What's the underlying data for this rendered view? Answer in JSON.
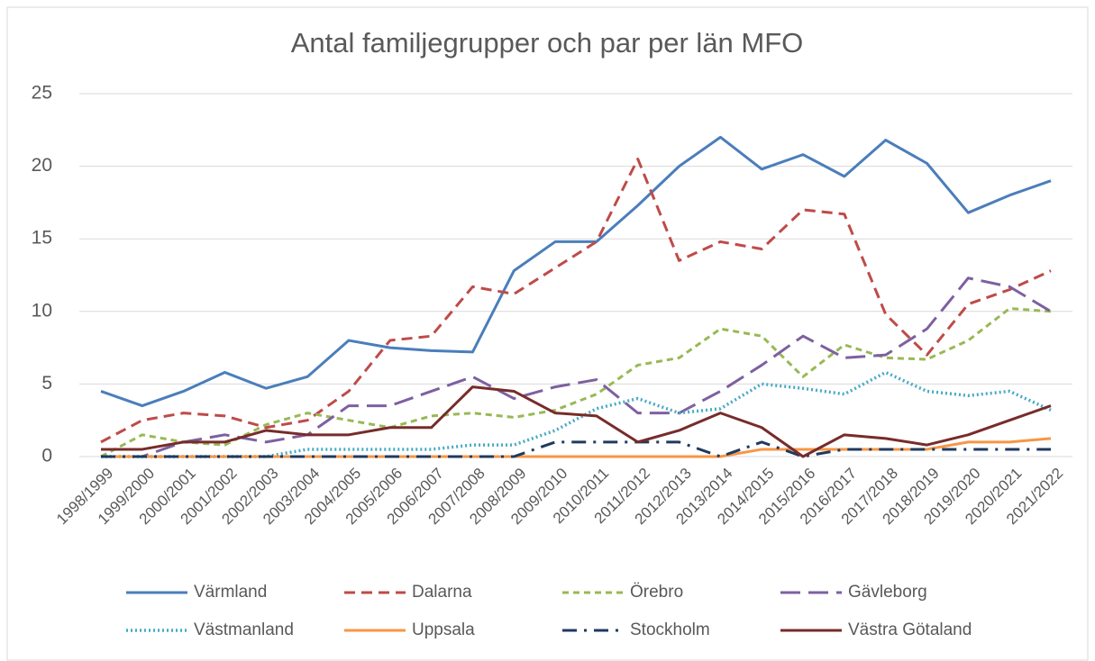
{
  "chart_data": {
    "type": "line",
    "title": "Antal familjegrupper och par per län MFO",
    "categories": [
      "1998/1999",
      "1999/2000",
      "2000/2001",
      "2001/2002",
      "2002/2003",
      "2003/2004",
      "2004/2005",
      "2005/2006",
      "2006/2007",
      "2007/2008",
      "2008/2009",
      "2009/2010",
      "2010/2011",
      "2011/2012",
      "2012/2013",
      "2013/2014",
      "2014/2015",
      "2015/2016",
      "2016/2017",
      "2017/2018",
      "2018/2019",
      "2019/2020",
      "2020/2021",
      "2021/2022"
    ],
    "ylim": [
      0,
      25
    ],
    "yticks": [
      0,
      5,
      10,
      15,
      20,
      25
    ],
    "grid": true,
    "legend": "bottom",
    "series": [
      {
        "name": "Värmland",
        "color": "#4a7ebb",
        "style": "solid",
        "values": [
          4.5,
          3.5,
          4.5,
          5.8,
          4.7,
          5.5,
          8.0,
          7.5,
          7.3,
          7.2,
          12.8,
          14.8,
          14.8,
          17.3,
          20.0,
          22.0,
          19.8,
          20.8,
          19.3,
          21.8,
          20.2,
          16.8,
          18.0,
          19.0
        ]
      },
      {
        "name": "Dalarna",
        "color": "#be4b48",
        "style": "dashed",
        "values": [
          1.0,
          2.5,
          3.0,
          2.8,
          2.0,
          2.5,
          4.5,
          8.0,
          8.3,
          11.7,
          11.2,
          13.0,
          14.8,
          20.5,
          13.5,
          14.8,
          14.3,
          17.0,
          16.7,
          9.8,
          7.0,
          10.5,
          11.5,
          12.8
        ]
      },
      {
        "name": "Örebro",
        "color": "#98b954",
        "style": "short-dashed",
        "values": [
          0,
          1.5,
          1.0,
          0.8,
          2.2,
          3.0,
          2.5,
          2.0,
          2.8,
          3.0,
          2.7,
          3.2,
          4.3,
          6.3,
          6.8,
          8.8,
          8.3,
          5.5,
          7.7,
          6.8,
          6.7,
          8.0,
          10.2,
          10.0
        ]
      },
      {
        "name": "Gävleborg",
        "color": "#7d60a0",
        "style": "long-dashed",
        "values": [
          0,
          0,
          1.0,
          1.5,
          1.0,
          1.5,
          3.5,
          3.5,
          4.5,
          5.5,
          4.0,
          4.8,
          5.3,
          3.0,
          3.0,
          4.5,
          6.3,
          8.3,
          6.8,
          7.0,
          8.8,
          12.3,
          11.7,
          10.0
        ]
      },
      {
        "name": "Västmanland",
        "color": "#46aac5",
        "style": "dotted",
        "values": [
          0,
          0,
          0,
          0,
          0,
          0.5,
          0.5,
          0.5,
          0.5,
          0.8,
          0.8,
          1.8,
          3.3,
          4.0,
          3.0,
          3.3,
          5.0,
          4.7,
          4.3,
          5.8,
          4.5,
          4.2,
          4.5,
          3.2
        ]
      },
      {
        "name": "Uppsala",
        "color": "#f79646",
        "style": "solid",
        "values": [
          0,
          0,
          0,
          0,
          0,
          0,
          0,
          0,
          0,
          0,
          0,
          0,
          0,
          0,
          0,
          0,
          0.5,
          0.5,
          0.5,
          0.5,
          0.5,
          1.0,
          1.0,
          1.25
        ]
      },
      {
        "name": "Stockholm",
        "color": "#1f3a5f",
        "style": "dash-dot",
        "values": [
          0,
          0,
          0,
          0,
          0,
          0,
          0,
          0,
          0,
          0,
          0,
          1.0,
          1.0,
          1.0,
          1.0,
          0,
          1.0,
          0,
          0.5,
          0.5,
          0.5,
          0.5,
          0.5,
          0.5
        ]
      },
      {
        "name": "Västra Götaland",
        "color": "#772c2a",
        "style": "solid",
        "values": [
          0.5,
          0.5,
          1.0,
          1.0,
          1.8,
          1.5,
          1.5,
          2.0,
          2.0,
          4.8,
          4.5,
          3.0,
          2.8,
          1.0,
          1.8,
          3.0,
          2.0,
          0,
          1.5,
          1.25,
          0.8,
          1.5,
          2.5,
          3.5
        ]
      }
    ]
  }
}
